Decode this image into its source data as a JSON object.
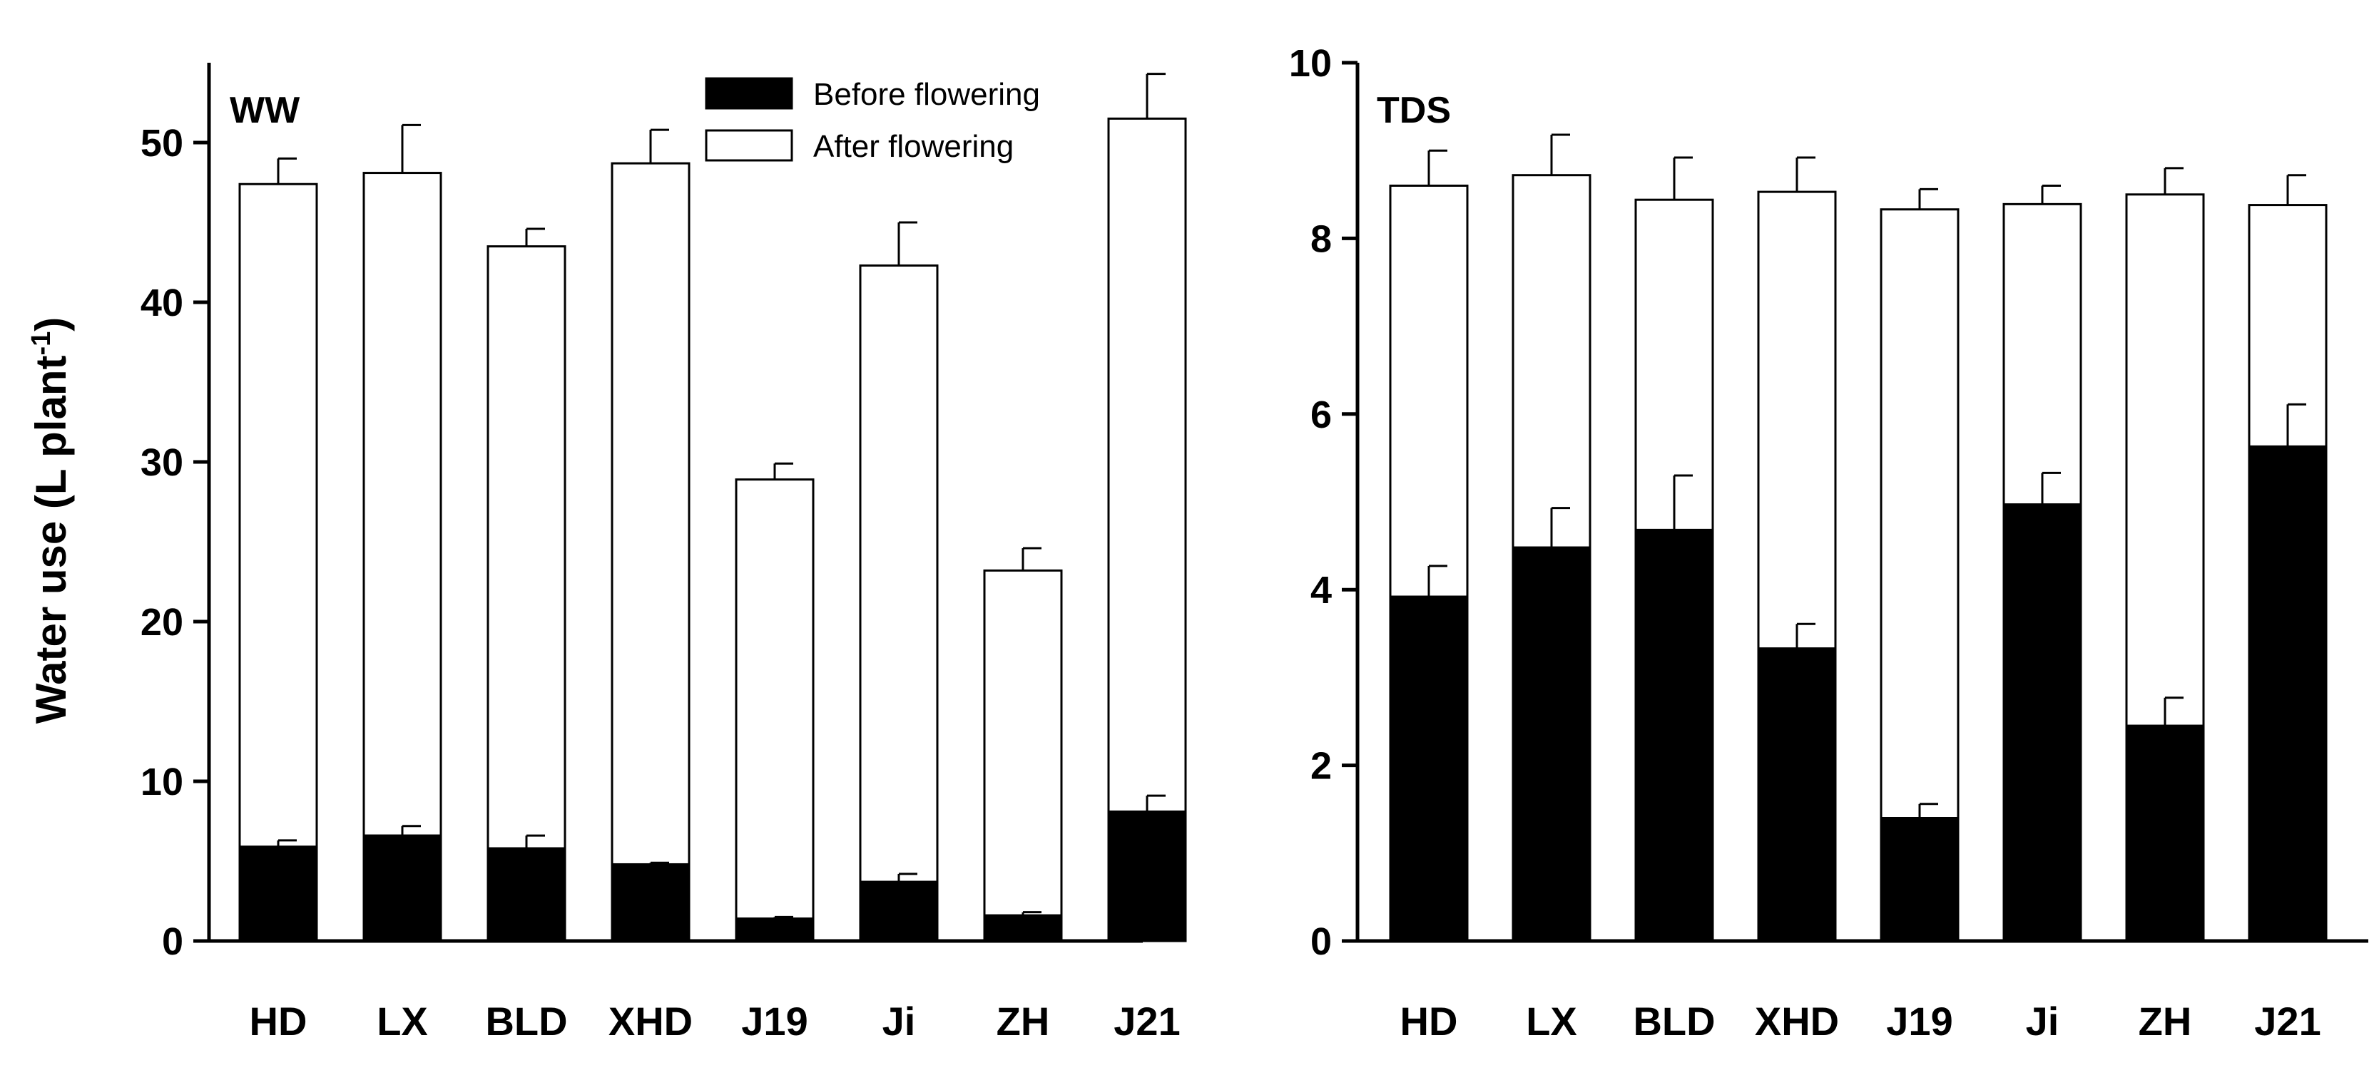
{
  "chart_data": [
    {
      "type": "bar",
      "stacked": true,
      "panel_label": "WW",
      "categories": [
        "HD",
        "LX",
        "BLD",
        "XHD",
        "J19",
        "Ji",
        "ZH",
        "J21"
      ],
      "series": [
        {
          "name": "Before flowering",
          "color": "#000000",
          "values": [
            5.9,
            6.6,
            5.8,
            4.8,
            1.4,
            3.7,
            1.6,
            8.1
          ],
          "errors": [
            0.4,
            0.6,
            0.8,
            0.1,
            0.1,
            0.5,
            0.2,
            1.0
          ]
        },
        {
          "name": "After flowering",
          "color": "#ffffff",
          "values": [
            41.5,
            41.5,
            37.7,
            43.9,
            27.5,
            38.6,
            21.6,
            43.4
          ],
          "errors": [
            1.6,
            3.0,
            1.1,
            2.1,
            1.0,
            2.7,
            1.4,
            2.8
          ]
        }
      ],
      "ylabel_main": "Water use (L plant",
      "ylabel_sup": "-1",
      "ylabel_close": ")",
      "ylim": [
        0,
        55
      ],
      "yticks": [
        0,
        10,
        20,
        30,
        40,
        50
      ],
      "legend": [
        "Before flowering",
        "After flowering"
      ],
      "legend_position": "top-right"
    },
    {
      "type": "bar",
      "stacked": true,
      "panel_label": "TDS",
      "categories": [
        "HD",
        "LX",
        "BLD",
        "XHD",
        "J19",
        "Ji",
        "ZH",
        "J21"
      ],
      "series": [
        {
          "name": "Before flowering",
          "color": "#000000",
          "values": [
            3.92,
            4.48,
            4.68,
            3.33,
            1.4,
            4.97,
            2.45,
            5.63
          ],
          "errors": [
            0.35,
            0.45,
            0.62,
            0.28,
            0.16,
            0.36,
            0.32,
            0.48
          ]
        },
        {
          "name": "After flowering",
          "color": "#ffffff",
          "values": [
            4.68,
            4.24,
            3.76,
            5.2,
            6.93,
            3.42,
            6.05,
            2.75
          ],
          "errors": [
            0.4,
            0.46,
            0.48,
            0.39,
            0.23,
            0.21,
            0.3,
            0.34
          ]
        }
      ],
      "ylim": [
        0,
        10
      ],
      "yticks": [
        0,
        2,
        4,
        6,
        8,
        10
      ]
    }
  ]
}
